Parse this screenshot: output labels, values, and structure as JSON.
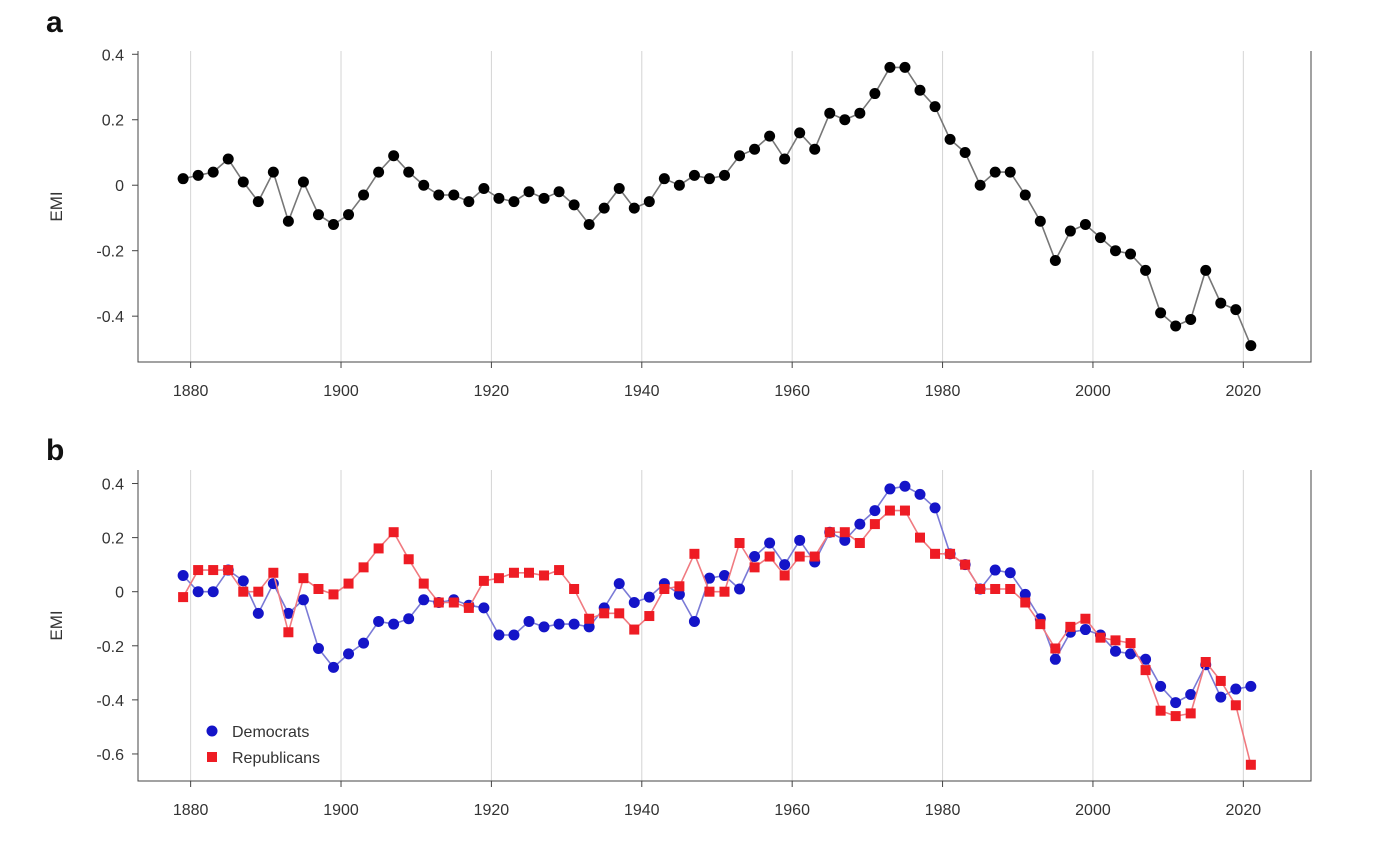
{
  "colors": {
    "all": "#000000",
    "all_line": "#777777",
    "democrats": "#1414c8",
    "democrats_line": "#7a7ad6",
    "republicans": "#ee1c24",
    "republicans_line": "#f07a80",
    "grid": "#d4d4d4",
    "axis": "#444444"
  },
  "chart_data": [
    {
      "panel": "a",
      "type": "line",
      "xlabel": "",
      "ylabel": "EMI",
      "xlim": [
        1873,
        2029
      ],
      "ylim": [
        -0.54,
        0.41
      ],
      "xticks": [
        1880,
        1900,
        1920,
        1940,
        1960,
        1980,
        2000,
        2020
      ],
      "yticks": [
        0.4,
        0.2,
        0,
        -0.2,
        -0.4
      ],
      "ytick_labels": [
        "0.4",
        "0.2",
        "0",
        "-0.2",
        "-0.4"
      ],
      "grid": "vertical",
      "series": [
        {
          "marker": "circle",
          "x": [
            1879,
            1881,
            1883,
            1885,
            1887,
            1889,
            1891,
            1893,
            1895,
            1897,
            1899,
            1901,
            1903,
            1905,
            1907,
            1909,
            1911,
            1913,
            1915,
            1917,
            1919,
            1921,
            1923,
            1925,
            1927,
            1929,
            1931,
            1933,
            1935,
            1937,
            1939,
            1941,
            1943,
            1945,
            1947,
            1949,
            1951,
            1953,
            1955,
            1957,
            1959,
            1961,
            1963,
            1965,
            1967,
            1969,
            1971,
            1973,
            1975,
            1977,
            1979,
            1981,
            1983,
            1985,
            1987,
            1989,
            1991,
            1993,
            1995,
            1997,
            1999,
            2001,
            2003,
            2005,
            2007,
            2009,
            2011,
            2013,
            2015,
            2017,
            2019,
            2021
          ],
          "y": [
            0.02,
            0.03,
            0.04,
            0.08,
            0.01,
            -0.05,
            0.04,
            -0.11,
            0.01,
            -0.09,
            -0.12,
            -0.09,
            -0.03,
            0.04,
            0.09,
            0.04,
            0.0,
            -0.03,
            -0.03,
            -0.05,
            -0.01,
            -0.04,
            -0.05,
            -0.02,
            -0.04,
            -0.02,
            -0.06,
            -0.12,
            -0.07,
            -0.01,
            -0.07,
            -0.05,
            0.02,
            0.0,
            0.03,
            0.02,
            0.03,
            0.09,
            0.11,
            0.15,
            0.08,
            0.16,
            0.11,
            0.22,
            0.2,
            0.22,
            0.28,
            0.36,
            0.36,
            0.29,
            0.24,
            0.14,
            0.1,
            0.0,
            0.04,
            0.04,
            -0.03,
            -0.11,
            -0.23,
            -0.14,
            -0.12,
            -0.16,
            -0.2,
            -0.21,
            -0.26,
            -0.39,
            -0.43,
            -0.41,
            -0.26,
            -0.36,
            -0.38,
            -0.49
          ]
        }
      ]
    },
    {
      "panel": "b",
      "type": "line",
      "xlabel": "",
      "ylabel": "EMI",
      "xlim": [
        1873,
        2029
      ],
      "ylim": [
        -0.7,
        0.45
      ],
      "xticks": [
        1880,
        1900,
        1920,
        1940,
        1960,
        1980,
        2000,
        2020
      ],
      "yticks": [
        0.4,
        0.2,
        0,
        -0.2,
        -0.4,
        -0.6
      ],
      "ytick_labels": [
        "0.4",
        "0.2",
        "0",
        "-0.2",
        "-0.4",
        "-0.6"
      ],
      "grid": "vertical",
      "legend_position": "bottom-left",
      "series": [
        {
          "name": "Democrats",
          "marker": "circle",
          "x": [
            1879,
            1881,
            1883,
            1885,
            1887,
            1889,
            1891,
            1893,
            1895,
            1897,
            1899,
            1901,
            1903,
            1905,
            1907,
            1909,
            1911,
            1913,
            1915,
            1917,
            1919,
            1921,
            1923,
            1925,
            1927,
            1929,
            1931,
            1933,
            1935,
            1937,
            1939,
            1941,
            1943,
            1945,
            1947,
            1949,
            1951,
            1953,
            1955,
            1957,
            1959,
            1961,
            1963,
            1965,
            1967,
            1969,
            1971,
            1973,
            1975,
            1977,
            1979,
            1981,
            1983,
            1985,
            1987,
            1989,
            1991,
            1993,
            1995,
            1997,
            1999,
            2001,
            2003,
            2005,
            2007,
            2009,
            2011,
            2013,
            2015,
            2017,
            2019,
            2021
          ],
          "y": [
            0.06,
            0.0,
            0.0,
            0.08,
            0.04,
            -0.08,
            0.03,
            -0.08,
            -0.03,
            -0.21,
            -0.28,
            -0.23,
            -0.19,
            -0.11,
            -0.12,
            -0.1,
            -0.03,
            -0.04,
            -0.03,
            -0.05,
            -0.06,
            -0.16,
            -0.16,
            -0.11,
            -0.13,
            -0.12,
            -0.12,
            -0.13,
            -0.06,
            0.03,
            -0.04,
            -0.02,
            0.03,
            -0.01,
            -0.11,
            0.05,
            0.06,
            0.01,
            0.13,
            0.18,
            0.1,
            0.19,
            0.11,
            0.22,
            0.19,
            0.25,
            0.3,
            0.38,
            0.39,
            0.36,
            0.31,
            0.14,
            0.1,
            0.01,
            0.08,
            0.07,
            -0.01,
            -0.1,
            -0.25,
            -0.15,
            -0.14,
            -0.16,
            -0.22,
            -0.23,
            -0.25,
            -0.35,
            -0.41,
            -0.38,
            -0.27,
            -0.39,
            -0.36,
            -0.35
          ]
        },
        {
          "name": "Republicans",
          "marker": "square",
          "x": [
            1879,
            1881,
            1883,
            1885,
            1887,
            1889,
            1891,
            1893,
            1895,
            1897,
            1899,
            1901,
            1903,
            1905,
            1907,
            1909,
            1911,
            1913,
            1915,
            1917,
            1919,
            1921,
            1923,
            1925,
            1927,
            1929,
            1931,
            1933,
            1935,
            1937,
            1939,
            1941,
            1943,
            1945,
            1947,
            1949,
            1951,
            1953,
            1955,
            1957,
            1959,
            1961,
            1963,
            1965,
            1967,
            1969,
            1971,
            1973,
            1975,
            1977,
            1979,
            1981,
            1983,
            1985,
            1987,
            1989,
            1991,
            1993,
            1995,
            1997,
            1999,
            2001,
            2003,
            2005,
            2007,
            2009,
            2011,
            2013,
            2015,
            2017,
            2019,
            2021
          ],
          "y": [
            -0.02,
            0.08,
            0.08,
            0.08,
            0.0,
            0.0,
            0.07,
            -0.15,
            0.05,
            0.01,
            -0.01,
            0.03,
            0.09,
            0.16,
            0.22,
            0.12,
            0.03,
            -0.04,
            -0.04,
            -0.06,
            0.04,
            0.05,
            0.07,
            0.07,
            0.06,
            0.08,
            0.01,
            -0.1,
            -0.08,
            -0.08,
            -0.14,
            -0.09,
            0.01,
            0.02,
            0.14,
            0.0,
            0.0,
            0.18,
            0.09,
            0.13,
            0.06,
            0.13,
            0.13,
            0.22,
            0.22,
            0.18,
            0.25,
            0.3,
            0.3,
            0.2,
            0.14,
            0.14,
            0.1,
            0.01,
            0.01,
            0.01,
            -0.04,
            -0.12,
            -0.21,
            -0.13,
            -0.1,
            -0.17,
            -0.18,
            -0.19,
            -0.29,
            -0.44,
            -0.46,
            -0.45,
            -0.26,
            -0.33,
            -0.42,
            -0.64
          ]
        }
      ]
    }
  ],
  "panels": {
    "a": "a",
    "b": "b"
  }
}
